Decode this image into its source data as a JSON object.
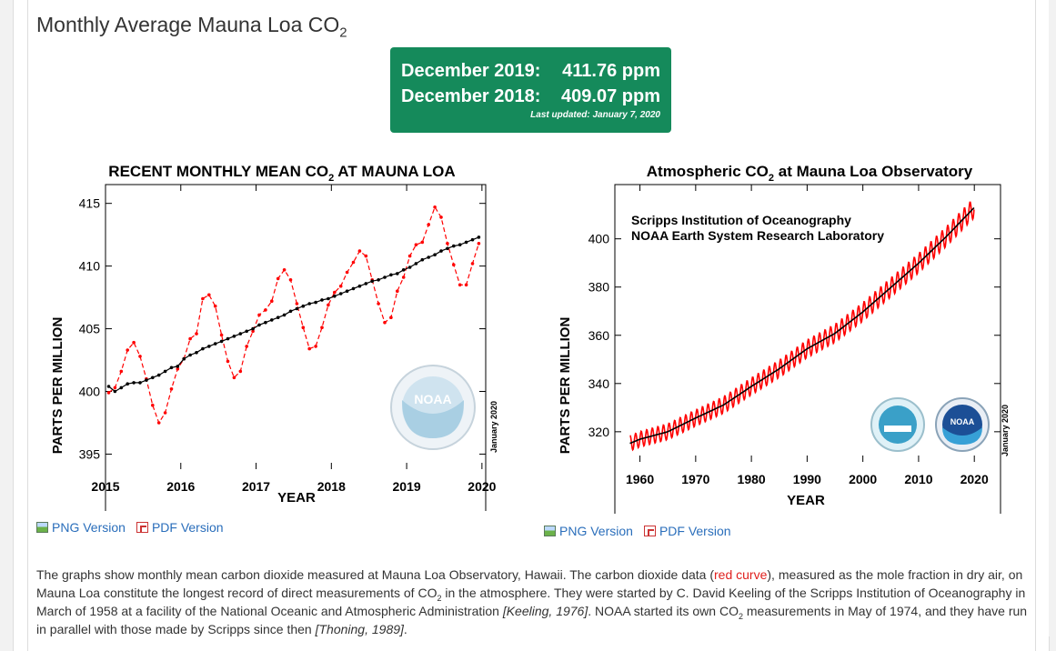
{
  "page": {
    "title": "Monthly Average Mauna Loa CO",
    "title_sub": "2"
  },
  "summary": {
    "row1_label": "December 2019:",
    "row1_value": "411.76 ppm",
    "row2_label": "December 2018:",
    "row2_value": "409.07 ppm",
    "updated": "Last updated: January 7, 2020"
  },
  "colors": {
    "accent_green": "#158a5b",
    "series_red": "#ff0000",
    "series_black": "#000000",
    "link_blue": "#2a6ebb"
  },
  "icons": [
    "png-image-icon",
    "pdf-file-icon",
    "noaa-logo",
    "scripps-logo"
  ],
  "chart_data": [
    {
      "type": "line",
      "title": "RECENT MONTHLY MEAN CO",
      "title_sub": "2",
      "title_suffix": " AT MAUNA LOA",
      "xlabel": "YEAR",
      "ylabel": "PARTS PER MILLION",
      "xlim": [
        2015.0,
        2020.05
      ],
      "ylim": [
        393.8,
        416.5
      ],
      "xticks": [
        2015,
        2016,
        2017,
        2018,
        2019,
        2020
      ],
      "yticks": [
        395,
        400,
        405,
        410,
        415
      ],
      "stamp": "January 2020",
      "series": [
        {
          "color": "#ff0000",
          "dashed": true,
          "markers": true,
          "x_start": 2015.042,
          "x_step": 0.08333,
          "values": [
            399.9,
            400.3,
            401.6,
            403.3,
            403.9,
            402.8,
            401.0,
            398.9,
            397.5,
            398.3,
            400.2,
            401.8,
            402.6,
            404.2,
            404.6,
            407.4,
            407.7,
            406.8,
            404.5,
            402.4,
            401.1,
            401.6,
            403.6,
            404.8,
            406.1,
            406.5,
            407.2,
            409.0,
            409.7,
            408.9,
            407.0,
            405.1,
            403.4,
            403.6,
            405.1,
            406.9,
            407.9,
            408.4,
            409.5,
            410.3,
            411.2,
            410.8,
            408.9,
            407.0,
            405.5,
            405.9,
            408.0,
            409.1,
            410.8,
            411.7,
            411.9,
            413.3,
            414.7,
            413.9,
            411.8,
            410.1,
            408.5,
            408.5,
            410.2,
            411.8
          ]
        },
        {
          "color": "#000000",
          "dashed": false,
          "markers": true,
          "x_start": 2015.042,
          "x_step": 0.08333,
          "values": [
            400.4,
            400.0,
            400.3,
            400.6,
            400.7,
            400.7,
            400.9,
            401.1,
            401.3,
            401.6,
            401.9,
            402.0,
            402.6,
            402.9,
            403.1,
            403.4,
            403.6,
            403.8,
            404.0,
            404.2,
            404.4,
            404.6,
            404.8,
            405.0,
            405.3,
            405.5,
            405.7,
            405.9,
            406.1,
            406.4,
            406.6,
            406.8,
            407.0,
            407.1,
            407.3,
            407.4,
            407.6,
            407.8,
            408.0,
            408.2,
            408.4,
            408.6,
            408.8,
            408.9,
            409.1,
            409.3,
            409.4,
            409.7,
            409.9,
            410.2,
            410.5,
            410.7,
            410.9,
            411.2,
            411.4,
            411.6,
            411.7,
            411.9,
            412.1,
            412.3
          ]
        }
      ]
    },
    {
      "type": "line",
      "title": "Atmospheric CO",
      "title_sub": "2",
      "title_suffix": " at Mauna Loa Observatory",
      "xlabel": "YEAR",
      "ylabel": "PARTS PER MILLION",
      "xlim": [
        1955.5,
        2024.7
      ],
      "ylim": [
        307.5,
        422.5
      ],
      "xticks": [
        1960,
        1970,
        1980,
        1990,
        2000,
        2010,
        2020
      ],
      "yticks": [
        320,
        340,
        360,
        380,
        400
      ],
      "annotation_line1": "Scripps Institution of Oceanography",
      "annotation_line2": "NOAA Earth System Research Laboratory",
      "stamp": "January 2020",
      "trend_points": [
        [
          1958,
          315.0
        ],
        [
          1960,
          316.9
        ],
        [
          1965,
          320.0
        ],
        [
          1970,
          325.7
        ],
        [
          1975,
          331.1
        ],
        [
          1980,
          338.8
        ],
        [
          1985,
          346.1
        ],
        [
          1990,
          354.4
        ],
        [
          1995,
          360.8
        ],
        [
          2000,
          369.7
        ],
        [
          2005,
          379.8
        ],
        [
          2010,
          389.9
        ],
        [
          2015,
          401.0
        ],
        [
          2020,
          413.0
        ]
      ],
      "seasonal_amplitude": 3.2
    }
  ],
  "downloads": {
    "left_png": "PNG Version",
    "left_pdf": "PDF Version",
    "right_png": "PNG Version",
    "right_pdf": "PDF Version"
  },
  "description": {
    "p1": "The graphs show monthly mean carbon dioxide measured at Mauna Loa Observatory, Hawaii. The carbon dioxide data (",
    "red_curve": "red curve",
    "p2": "), measured as the mole fraction in dry air, on Mauna Loa constitute the longest record of direct measurements of CO",
    "sub1": "2",
    "p3": " in the atmosphere. They were started by C. David Keeling of the Scripps Institution of Oceanography in March of 1958 at a facility of the National Oceanic and Atmospheric Administration ",
    "cite1": "[Keeling, 1976]",
    "p4": ". NOAA started its own CO",
    "sub2": "2",
    "p5": " measurements in May of 1974, and they have run in parallel with those made by Scripps since then ",
    "cite2": "[Thoning, 1989]",
    "p6": "."
  }
}
